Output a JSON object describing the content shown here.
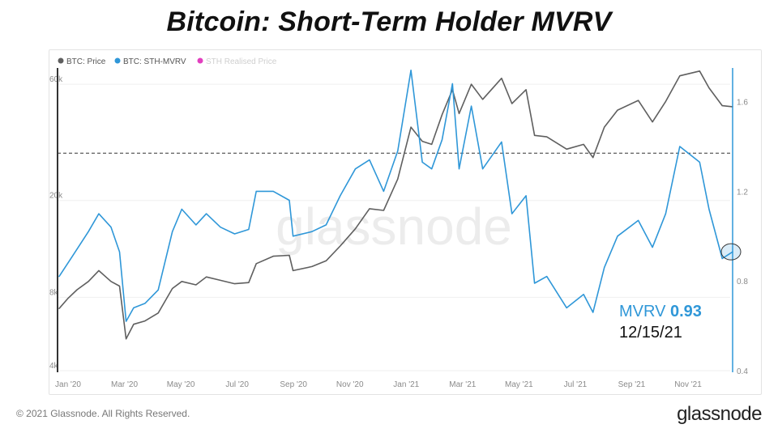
{
  "title": "Bitcoin: Short-Term Holder MVRV",
  "footer": {
    "copyright": "© 2021 Glassnode. All Rights Reserved.",
    "brand": "glassnode"
  },
  "watermark": "glassnode",
  "colors": {
    "price": "#5f5f5f",
    "mvrv": "#2f97d8",
    "realised": "#e23fbf",
    "realised_muted": "#cfcfcf",
    "annotation_date": "#111111"
  },
  "chart_data": {
    "type": "line",
    "legend": [
      {
        "name": "BTC: Price",
        "color": "#5f5f5f",
        "active": true
      },
      {
        "name": "BTC: STH-MVRV",
        "color": "#2f97d8",
        "active": true
      },
      {
        "name": "STH Realised Price",
        "color": "#e23fbf",
        "active": false
      }
    ],
    "legend_position": "top-left",
    "x_ticks": [
      "Jan '20",
      "Mar '20",
      "May '20",
      "Jul '20",
      "Sep '20",
      "Nov '20",
      "Jan '21",
      "Mar '21",
      "May '21",
      "Jul '21",
      "Sep '21",
      "Nov '21"
    ],
    "x_range": [
      "2020-01-01",
      "2021-12-15"
    ],
    "y_left": {
      "scale": "log",
      "ticks": [
        "4k",
        "8k",
        "20k",
        "60k"
      ],
      "tick_values": [
        4000,
        8000,
        20000,
        60000
      ],
      "range": [
        4000,
        70000
      ]
    },
    "y_right": {
      "scale": "linear",
      "ticks": [
        "0.4",
        "0.8",
        "1.2",
        "1.6"
      ],
      "tick_values": [
        0.4,
        0.8,
        1.2,
        1.6
      ],
      "range": [
        0.4,
        1.75
      ]
    },
    "reference_line": {
      "axis": "right",
      "value": 1.37,
      "style": "dashed"
    },
    "series": [
      {
        "name": "BTC: Price",
        "axis": "left",
        "points": [
          [
            "2020-01-01",
            7200
          ],
          [
            "2020-01-10",
            7900
          ],
          [
            "2020-01-20",
            8600
          ],
          [
            "2020-02-01",
            9300
          ],
          [
            "2020-02-12",
            10300
          ],
          [
            "2020-02-25",
            9300
          ],
          [
            "2020-03-05",
            8900
          ],
          [
            "2020-03-12",
            5400
          ],
          [
            "2020-03-20",
            6200
          ],
          [
            "2020-04-01",
            6400
          ],
          [
            "2020-04-15",
            6900
          ],
          [
            "2020-04-30",
            8700
          ],
          [
            "2020-05-10",
            9300
          ],
          [
            "2020-05-25",
            9000
          ],
          [
            "2020-06-05",
            9700
          ],
          [
            "2020-06-20",
            9400
          ],
          [
            "2020-07-05",
            9100
          ],
          [
            "2020-07-20",
            9200
          ],
          [
            "2020-07-28",
            11000
          ],
          [
            "2020-08-15",
            11800
          ],
          [
            "2020-09-01",
            11900
          ],
          [
            "2020-09-05",
            10300
          ],
          [
            "2020-09-25",
            10700
          ],
          [
            "2020-10-10",
            11300
          ],
          [
            "2020-10-25",
            13000
          ],
          [
            "2020-11-10",
            15300
          ],
          [
            "2020-11-25",
            18500
          ],
          [
            "2020-12-10",
            18200
          ],
          [
            "2020-12-25",
            24500
          ],
          [
            "2021-01-08",
            40000
          ],
          [
            "2021-01-20",
            35000
          ],
          [
            "2021-01-30",
            34000
          ],
          [
            "2021-02-10",
            45000
          ],
          [
            "2021-02-21",
            57000
          ],
          [
            "2021-02-28",
            45500
          ],
          [
            "2021-03-13",
            60000
          ],
          [
            "2021-03-25",
            52000
          ],
          [
            "2021-04-14",
            63500
          ],
          [
            "2021-04-25",
            50000
          ],
          [
            "2021-05-10",
            57000
          ],
          [
            "2021-05-19",
            37000
          ],
          [
            "2021-06-01",
            36500
          ],
          [
            "2021-06-22",
            32500
          ],
          [
            "2021-07-10",
            34000
          ],
          [
            "2021-07-20",
            30000
          ],
          [
            "2021-08-01",
            40000
          ],
          [
            "2021-08-15",
            47000
          ],
          [
            "2021-09-06",
            51500
          ],
          [
            "2021-09-21",
            42000
          ],
          [
            "2021-10-05",
            51000
          ],
          [
            "2021-10-20",
            65000
          ],
          [
            "2021-11-10",
            68000
          ],
          [
            "2021-11-20",
            58000
          ],
          [
            "2021-12-04",
            49000
          ],
          [
            "2021-12-15",
            48500
          ]
        ]
      },
      {
        "name": "BTC: STH-MVRV",
        "axis": "right",
        "points": [
          [
            "2020-01-01",
            0.82
          ],
          [
            "2020-01-15",
            0.91
          ],
          [
            "2020-02-01",
            1.02
          ],
          [
            "2020-02-12",
            1.1
          ],
          [
            "2020-02-25",
            1.04
          ],
          [
            "2020-03-05",
            0.93
          ],
          [
            "2020-03-12",
            0.62
          ],
          [
            "2020-03-20",
            0.68
          ],
          [
            "2020-04-01",
            0.7
          ],
          [
            "2020-04-15",
            0.76
          ],
          [
            "2020-04-30",
            1.02
          ],
          [
            "2020-05-10",
            1.12
          ],
          [
            "2020-05-25",
            1.05
          ],
          [
            "2020-06-05",
            1.1
          ],
          [
            "2020-06-20",
            1.04
          ],
          [
            "2020-07-05",
            1.01
          ],
          [
            "2020-07-20",
            1.03
          ],
          [
            "2020-07-28",
            1.2
          ],
          [
            "2020-08-15",
            1.2
          ],
          [
            "2020-09-01",
            1.16
          ],
          [
            "2020-09-05",
            1.0
          ],
          [
            "2020-09-25",
            1.02
          ],
          [
            "2020-10-10",
            1.05
          ],
          [
            "2020-10-25",
            1.18
          ],
          [
            "2020-11-10",
            1.3
          ],
          [
            "2020-11-25",
            1.34
          ],
          [
            "2020-12-10",
            1.2
          ],
          [
            "2020-12-25",
            1.38
          ],
          [
            "2021-01-08",
            1.74
          ],
          [
            "2021-01-20",
            1.33
          ],
          [
            "2021-01-30",
            1.3
          ],
          [
            "2021-02-10",
            1.43
          ],
          [
            "2021-02-21",
            1.68
          ],
          [
            "2021-02-28",
            1.3
          ],
          [
            "2021-03-13",
            1.58
          ],
          [
            "2021-03-25",
            1.3
          ],
          [
            "2021-04-14",
            1.42
          ],
          [
            "2021-04-25",
            1.1
          ],
          [
            "2021-05-10",
            1.18
          ],
          [
            "2021-05-19",
            0.79
          ],
          [
            "2021-06-01",
            0.82
          ],
          [
            "2021-06-22",
            0.68
          ],
          [
            "2021-07-10",
            0.74
          ],
          [
            "2021-07-20",
            0.66
          ],
          [
            "2021-08-01",
            0.86
          ],
          [
            "2021-08-15",
            1.0
          ],
          [
            "2021-09-06",
            1.07
          ],
          [
            "2021-09-21",
            0.95
          ],
          [
            "2021-10-05",
            1.1
          ],
          [
            "2021-10-20",
            1.4
          ],
          [
            "2021-11-10",
            1.33
          ],
          [
            "2021-11-20",
            1.12
          ],
          [
            "2021-12-04",
            0.9
          ],
          [
            "2021-12-15",
            0.93
          ]
        ]
      }
    ],
    "annotation": {
      "label": "MVRV",
      "value": "0.93",
      "date": "12/15/21"
    }
  }
}
